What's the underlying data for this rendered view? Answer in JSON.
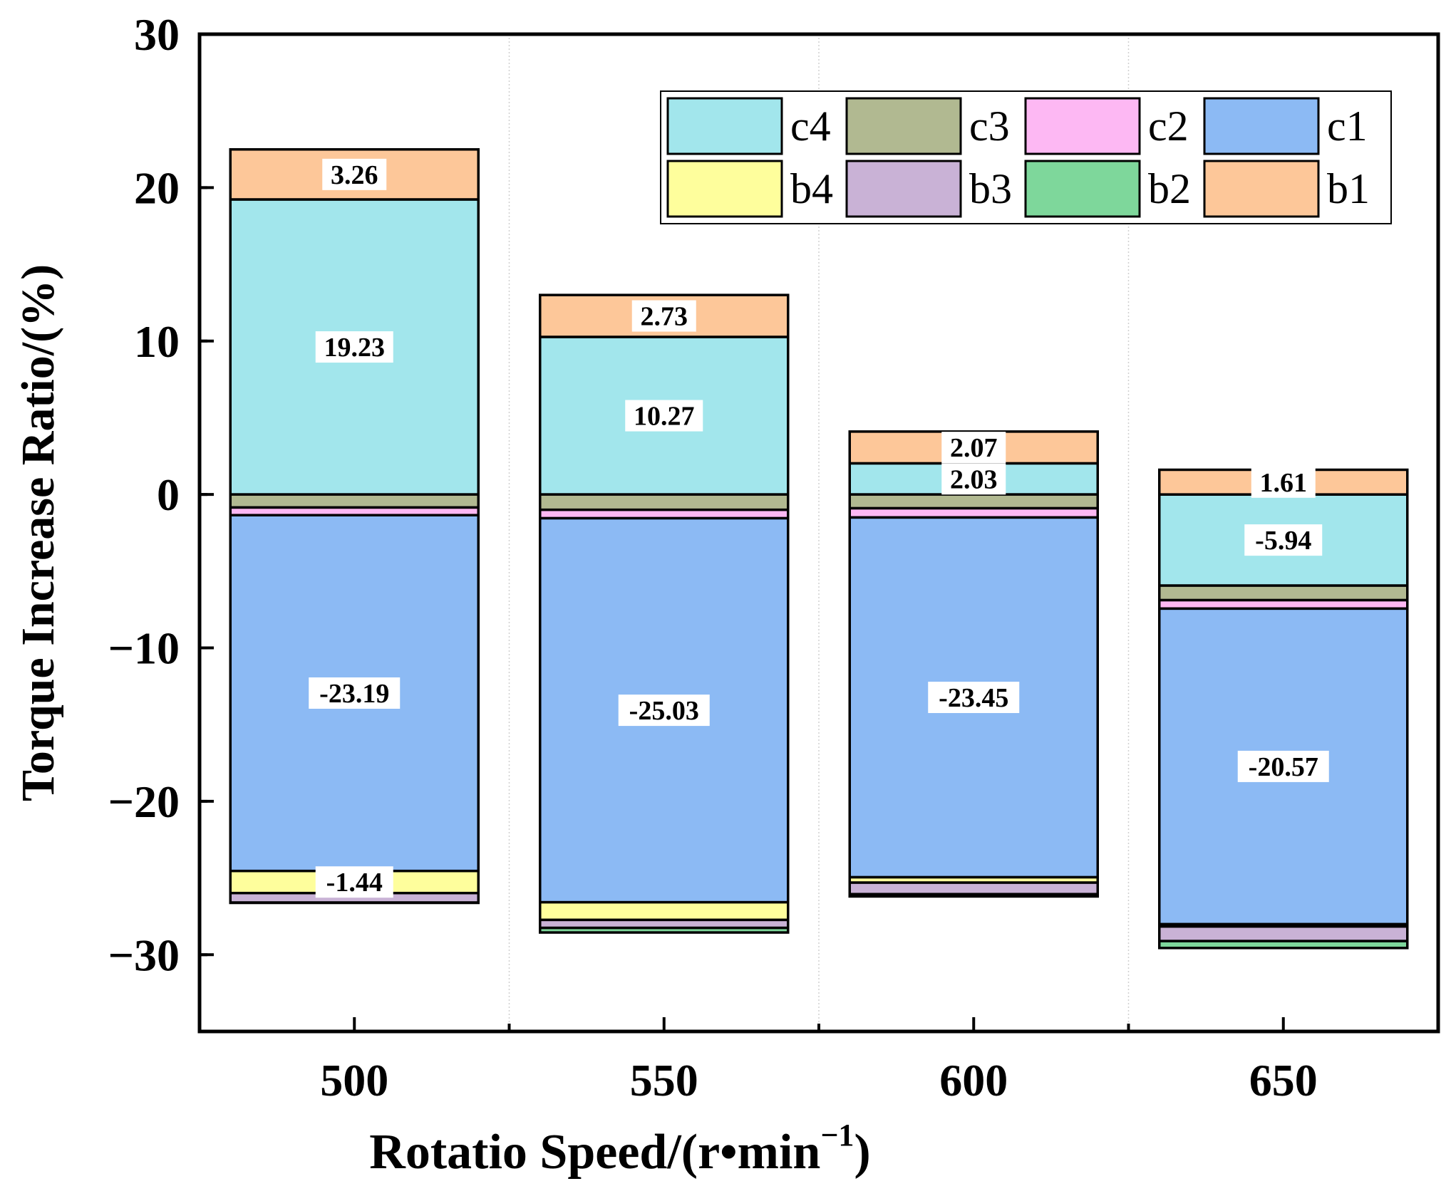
{
  "chart_data": {
    "type": "bar",
    "stacked": true,
    "xlabel": "Rotatio Speed/(r•min",
    "xlabel_sup": "−1",
    "xlabel_close": ")",
    "ylabel": "Torque Increase Ratio/(%)",
    "ylim": [
      -35,
      30
    ],
    "yticks": [
      -30,
      -20,
      -10,
      0,
      10,
      20,
      30
    ],
    "ytick_labels": [
      "−30",
      "−20",
      "−10",
      "0",
      "10",
      "20",
      "30"
    ],
    "categories": [
      "500",
      "550",
      "600",
      "650"
    ],
    "legend_position": "top-right",
    "series": [
      {
        "name": "c4",
        "color": "#a2e6ec",
        "values": [
          19.23,
          10.27,
          2.03,
          -5.94
        ]
      },
      {
        "name": "c3",
        "color": "#b1b991",
        "values": [
          -0.85,
          -1.0,
          -0.9,
          -0.95
        ]
      },
      {
        "name": "c2",
        "color": "#fdb8f3",
        "values": [
          -0.5,
          -0.55,
          -0.6,
          -0.55
        ]
      },
      {
        "name": "c1",
        "color": "#8cbaf4",
        "values": [
          -23.19,
          -25.03,
          -23.45,
          -20.57
        ]
      },
      {
        "name": "b4",
        "color": "#fefe9c",
        "values": [
          -1.44,
          -1.15,
          -0.35,
          -0.15
        ]
      },
      {
        "name": "b3",
        "color": "#c9b2d6",
        "values": [
          -0.62,
          -0.52,
          -0.75,
          -0.95
        ]
      },
      {
        "name": "b2",
        "color": "#7ed79b",
        "values": [
          -0.02,
          -0.3,
          -0.15,
          -0.45
        ]
      },
      {
        "name": "b1",
        "color": "#fdc799",
        "values": [
          3.26,
          2.73,
          2.07,
          1.61
        ]
      }
    ],
    "data_labels": [
      {
        "category": "500",
        "series": "c4",
        "text": "19.23"
      },
      {
        "category": "500",
        "series": "b1",
        "text": "3.26"
      },
      {
        "category": "500",
        "series": "b4",
        "text": "-1.44"
      },
      {
        "category": "500",
        "series": "c1",
        "text": "-23.19"
      },
      {
        "category": "550",
        "series": "c4",
        "text": "10.27"
      },
      {
        "category": "550",
        "series": "b1",
        "text": "2.73"
      },
      {
        "category": "550",
        "series": "c1",
        "text": "-25.03"
      },
      {
        "category": "600",
        "series": "c4",
        "text": "2.03"
      },
      {
        "category": "600",
        "series": "b1",
        "text": "2.07"
      },
      {
        "category": "600",
        "series": "c1",
        "text": "-23.45"
      },
      {
        "category": "650",
        "series": "b1",
        "text": "1.61"
      },
      {
        "category": "650",
        "series": "c1",
        "text": "-20.57"
      },
      {
        "category": "650",
        "series": "c4",
        "text": "-5.94"
      }
    ]
  }
}
